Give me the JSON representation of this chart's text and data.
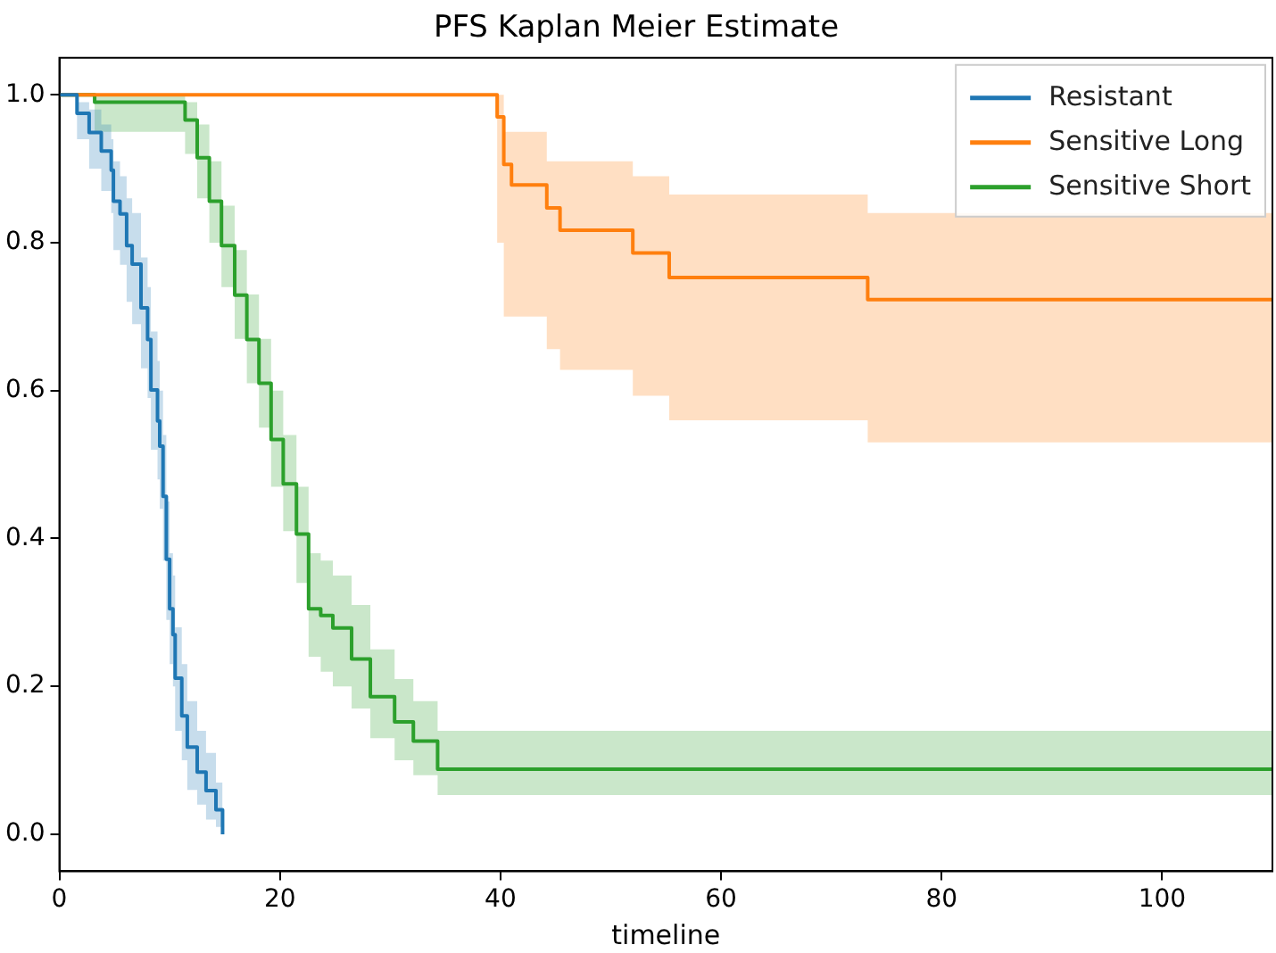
{
  "chart_data": {
    "type": "step",
    "title": "PFS Kaplan Meier Estimate",
    "xlabel": "timeline",
    "xlim": [
      0,
      110
    ],
    "xticks": [
      0,
      20,
      40,
      60,
      80,
      100
    ],
    "ylim": [
      -0.05,
      1.05
    ],
    "yticks": [
      {
        "value": 0,
        "label": "0.0"
      },
      {
        "value": 0.2,
        "label": "0.2"
      },
      {
        "value": 0.4,
        "label": "0.4"
      },
      {
        "value": 0.6,
        "label": "0.6"
      },
      {
        "value": 0.8,
        "label": "0.8"
      },
      {
        "value": 1,
        "label": "1.0"
      }
    ],
    "grid": false,
    "legend": "top right",
    "series": [
      {
        "name": "Resistant",
        "color": "#1f77b4",
        "x": [
          0,
          1.6,
          2.7,
          3.8,
          4.7,
          4.9,
          5.5,
          6.1,
          6.6,
          7.4,
          8.0,
          8.3,
          8.9,
          9.1,
          9.4,
          9.7,
          10.0,
          10.3,
          10.5,
          11.1,
          11.6,
          12.5,
          13.3,
          14.2,
          14.8
        ],
        "values": [
          1,
          0.975,
          0.949,
          0.924,
          0.898,
          0.856,
          0.839,
          0.796,
          0.771,
          0.712,
          0.669,
          0.601,
          0.559,
          0.525,
          0.457,
          0.372,
          0.305,
          0.27,
          0.211,
          0.16,
          0.118,
          0.084,
          0.059,
          0.033,
          0
        ],
        "lower": [
          1,
          0.94,
          0.9,
          0.87,
          0.84,
          0.79,
          0.77,
          0.72,
          0.69,
          0.63,
          0.59,
          0.52,
          0.48,
          0.44,
          0.37,
          0.29,
          0.23,
          0.2,
          0.14,
          0.1,
          0.06,
          0.04,
          0.02,
          0.01,
          0
        ],
        "upper": [
          1,
          0.99,
          0.98,
          0.96,
          0.94,
          0.91,
          0.89,
          0.86,
          0.84,
          0.78,
          0.74,
          0.68,
          0.64,
          0.6,
          0.54,
          0.45,
          0.38,
          0.35,
          0.28,
          0.23,
          0.18,
          0.14,
          0.11,
          0.07,
          0.03
        ]
      },
      {
        "name": "Sensitive Long",
        "color": "#ff7f0e",
        "x": [
          0,
          39.7,
          40.3,
          41,
          44.2,
          45.4,
          52,
          55.3,
          73.3,
          110
        ],
        "values": [
          1,
          0.97,
          0.906,
          0.878,
          0.847,
          0.817,
          0.786,
          0.753,
          0.723,
          0.723
        ],
        "lower": [
          1,
          0.8,
          0.7,
          0.7,
          0.656,
          0.628,
          0.593,
          0.56,
          0.53,
          0.53
        ],
        "upper": [
          1,
          1,
          0.95,
          0.95,
          0.91,
          0.91,
          0.89,
          0.865,
          0.84,
          0.84
        ]
      },
      {
        "name": "Sensitive Short",
        "color": "#2ca02c",
        "x": [
          0,
          3.2,
          10.8,
          11.4,
          12.5,
          13.6,
          14.7,
          15.9,
          17.0,
          18.1,
          19.2,
          20.3,
          21.5,
          22.6,
          23.7,
          24.8,
          26.5,
          28.2,
          30.4,
          32.1,
          34.3,
          110
        ],
        "values": [
          1,
          0.99,
          0.99,
          0.966,
          0.915,
          0.856,
          0.796,
          0.729,
          0.669,
          0.61,
          0.534,
          0.474,
          0.406,
          0.305,
          0.296,
          0.279,
          0.237,
          0.186,
          0.152,
          0.126,
          0.088,
          0.088
        ],
        "lower": [
          1,
          0.95,
          0.95,
          0.92,
          0.86,
          0.8,
          0.74,
          0.67,
          0.61,
          0.55,
          0.47,
          0.41,
          0.34,
          0.24,
          0.22,
          0.2,
          0.17,
          0.13,
          0.1,
          0.08,
          0.053,
          0.053
        ],
        "upper": [
          1,
          1,
          1,
          0.99,
          0.96,
          0.91,
          0.85,
          0.79,
          0.73,
          0.67,
          0.6,
          0.54,
          0.47,
          0.38,
          0.37,
          0.35,
          0.31,
          0.25,
          0.21,
          0.18,
          0.14,
          0.14
        ]
      }
    ]
  }
}
